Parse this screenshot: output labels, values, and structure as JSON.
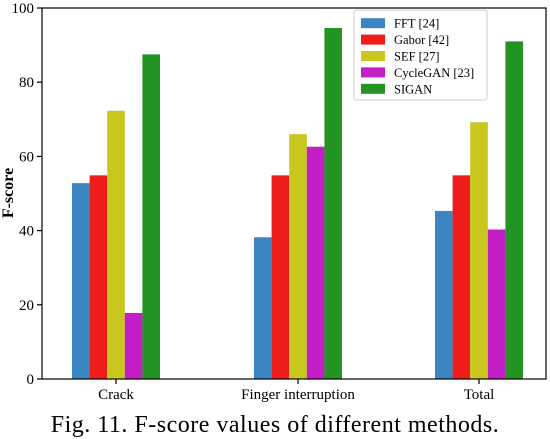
{
  "caption": "Fig. 11. F-score values of different methods.",
  "chart_data": {
    "type": "bar",
    "categories": [
      "Crack",
      "Finger interruption",
      "Total"
    ],
    "series": [
      {
        "name": "FFT [24]",
        "color": "#3a85c2",
        "values": [
          52.8,
          38.2,
          45.3
        ]
      },
      {
        "name": "Gabor [42]",
        "color": "#ef1c1c",
        "values": [
          54.9,
          54.9,
          54.9
        ]
      },
      {
        "name": "SEF [27]",
        "color": "#c9c61e",
        "values": [
          72.3,
          66.0,
          69.2
        ]
      },
      {
        "name": "CycleGAN [23]",
        "color": "#c21fc6",
        "values": [
          17.8,
          62.6,
          40.3
        ]
      },
      {
        "name": "SIGAN",
        "color": "#239423",
        "values": [
          87.5,
          94.6,
          91.0
        ]
      }
    ],
    "xlabel": "",
    "ylabel": "F-score",
    "ylim": [
      0,
      100
    ],
    "yticks": [
      0,
      20,
      40,
      60,
      80,
      100
    ],
    "grid": false,
    "legend_position": "top-right"
  }
}
